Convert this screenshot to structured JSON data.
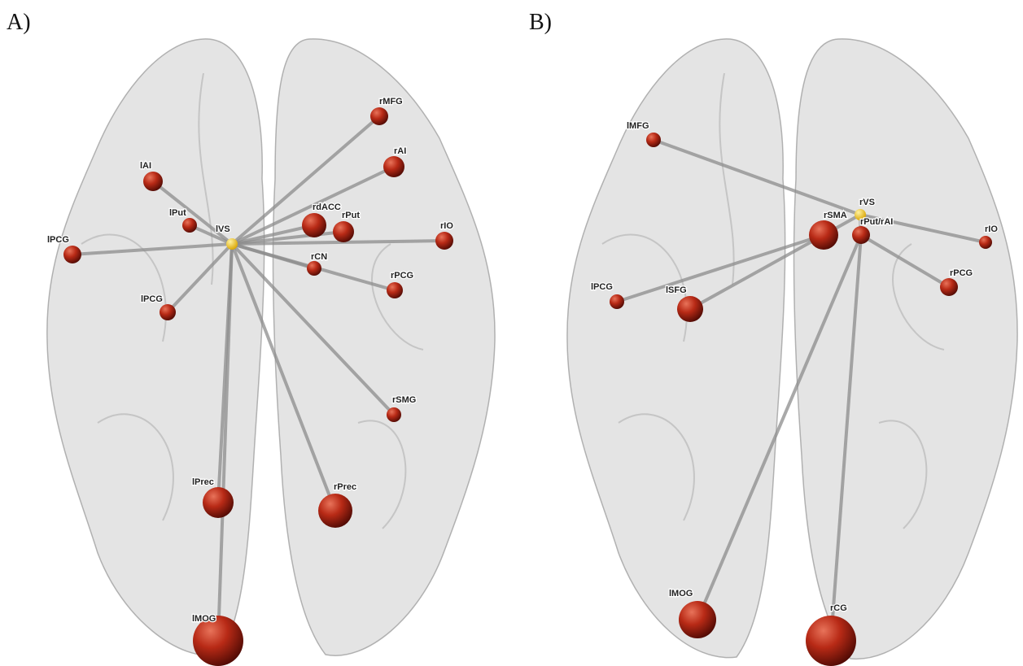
{
  "panels": [
    {
      "label": "A)",
      "nodes": [
        "lVS",
        "lAI",
        "lPut",
        "lPCG",
        "lPCG",
        "rMFG",
        "rAI",
        "rdACC",
        "rPut",
        "rIO",
        "rCN",
        "rPCG",
        "rSMG",
        "lPrec",
        "rPrec",
        "lMOG"
      ]
    },
    {
      "label": "B)",
      "nodes": [
        "rVS",
        "lMFG",
        "rSMA",
        "rPut/rAI",
        "rIO",
        "lPCG",
        "lSFG",
        "rPCG",
        "lMOG",
        "rCG"
      ]
    }
  ]
}
